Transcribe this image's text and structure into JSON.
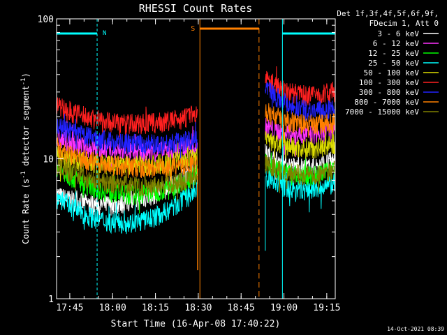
{
  "chart_data": {
    "type": "line",
    "title": "RHESSI Count Rates",
    "xlabel": "Start Time (16-Apr-08 17:40:22)",
    "ylabel": "Count Rate (s⁻¹ detector segment⁻¹)",
    "ylabel_plain": "Count Rate (s",
    "ylabel_mid": " detector segment",
    "ylabel_end": ")",
    "ylabel_sup": "-1",
    "yscale": "log",
    "ylim": [
      1,
      100
    ],
    "xlim_minutes": [
      0,
      97.6
    ],
    "x_tick_labels": [
      "17:45",
      "18:00",
      "18:15",
      "18:30",
      "18:45",
      "19:00",
      "19:15"
    ],
    "x_tick_minutes": [
      4.63,
      19.63,
      34.63,
      49.63,
      64.63,
      79.63,
      94.63
    ],
    "y_tick_labels": [
      "1",
      "10",
      "100"
    ],
    "y_tick_values": [
      1,
      10,
      100
    ],
    "legend_header": [
      "Det 1f,3f,4f,5f,6f,9f,",
      "FDecim 1, Att 0"
    ],
    "legend_position": "outside-right-top",
    "series": [
      {
        "name": "3 - 6 keV",
        "color": "#ffffff",
        "seg1": {
          "start": 5.5,
          "mid": 4.9,
          "end": 8.6
        },
        "seg2": {
          "start": 11.0,
          "mid": 8.7,
          "end": 10.0
        }
      },
      {
        "name": "6 - 12 keV",
        "color": "#ff33ff",
        "seg1": {
          "start": 14.0,
          "mid": 11.2,
          "end": 12.5
        },
        "seg2": {
          "start": 17.0,
          "mid": 15.0,
          "end": 16.0
        }
      },
      {
        "name": "12 - 25 keV",
        "color": "#00ff00",
        "seg1": {
          "start": 8.8,
          "mid": 5.6,
          "end": 8.0
        },
        "seg2": {
          "start": 9.5,
          "mid": 7.6,
          "end": 8.6
        }
      },
      {
        "name": "25 - 50 keV",
        "color": "#00ffff",
        "seg1": {
          "start": 5.5,
          "mid": 3.5,
          "end": 6.2
        },
        "seg2": {
          "start": 7.5,
          "mid": 6.0,
          "end": 6.8
        }
      },
      {
        "name": "50 - 100 keV",
        "color": "#dddd00",
        "seg1": {
          "start": 10.5,
          "mid": 9.0,
          "end": 10.5
        },
        "seg2": {
          "start": 14.0,
          "mid": 12.0,
          "end": 13.0
        }
      },
      {
        "name": "100 - 300 keV",
        "color": "#ff2020",
        "seg1": {
          "start": 24.0,
          "mid": 18.0,
          "end": 21.0
        },
        "seg2": {
          "start": 38.0,
          "mid": 29.0,
          "end": 31.0
        }
      },
      {
        "name": "300 - 800 keV",
        "color": "#2222ff",
        "seg1": {
          "start": 17.0,
          "mid": 13.0,
          "end": 14.0
        },
        "seg2": {
          "start": 33.0,
          "mid": 23.0,
          "end": 23.5
        }
      },
      {
        "name": "800 - 7000 keV",
        "color": "#ff8000",
        "seg1": {
          "start": 11.5,
          "mid": 8.8,
          "end": 9.2
        },
        "seg2": {
          "start": 22.0,
          "mid": 18.0,
          "end": 18.5
        }
      },
      {
        "name": "7000 - 15000 keV",
        "color": "#808000",
        "seg1": {
          "start": 9.0,
          "mid": 6.5,
          "end": 7.5
        },
        "seg2": {
          "start": 9.2,
          "mid": 7.8,
          "end": 8.4
        }
      }
    ],
    "segments_minutes": {
      "seg1": [
        0,
        49.3
      ],
      "seg2": [
        73.1,
        97.6
      ]
    },
    "annotations": {
      "night_label": "N",
      "saa_label": "S",
      "night_intervals_minutes": [
        [
          0,
          14.2
        ],
        [
          79.1,
          97.6
        ]
      ],
      "saa_interval_minutes": [
        50.2,
        70.9
      ],
      "night_color": "#00ffff",
      "saa_color": "#ff8000"
    },
    "timestamp": "14-Oct-2021 08:39"
  }
}
